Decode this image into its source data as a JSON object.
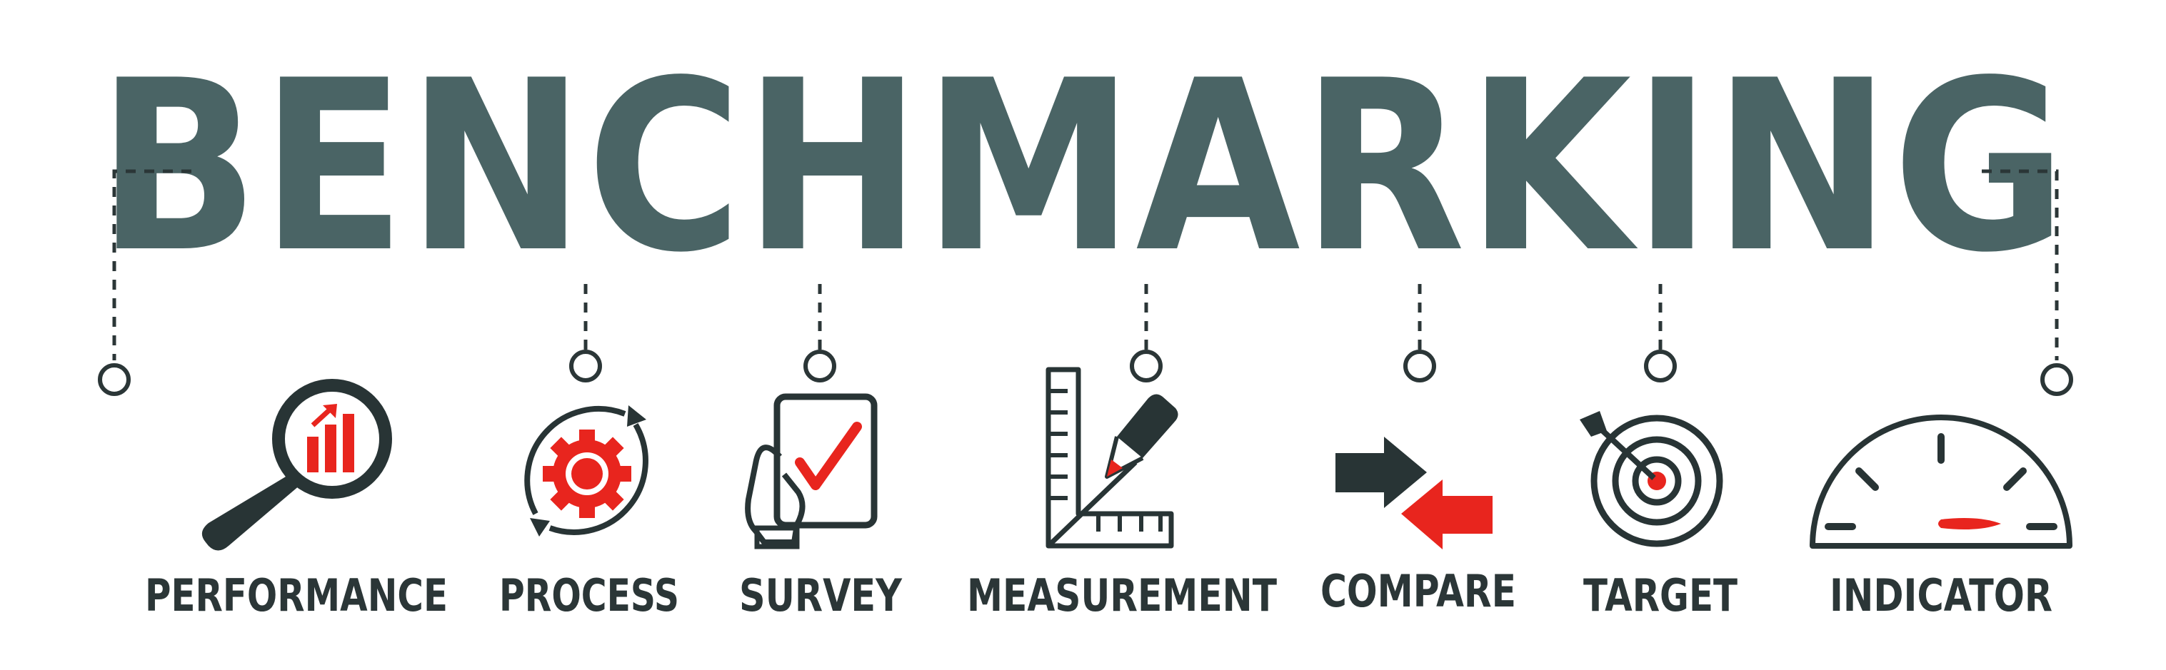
{
  "title": "BENCHMARKING",
  "items": [
    {
      "label": "PERFORMANCE",
      "icon": "magnifier-chart-icon"
    },
    {
      "label": "PROCESS",
      "icon": "gear-cycle-icon"
    },
    {
      "label": "SURVEY",
      "icon": "hand-clipboard-check-icon"
    },
    {
      "label": "MEASUREMENT",
      "icon": "ruler-pencil-icon"
    },
    {
      "label": "COMPARE",
      "icon": "opposing-arrows-icon"
    },
    {
      "label": "TARGET",
      "icon": "dartboard-icon"
    },
    {
      "label": "INDICATOR",
      "icon": "speedometer-icon"
    }
  ],
  "colors": {
    "title": "#4a6465",
    "ink": "#283435",
    "accent": "#e8251e",
    "background": "#ffffff"
  }
}
